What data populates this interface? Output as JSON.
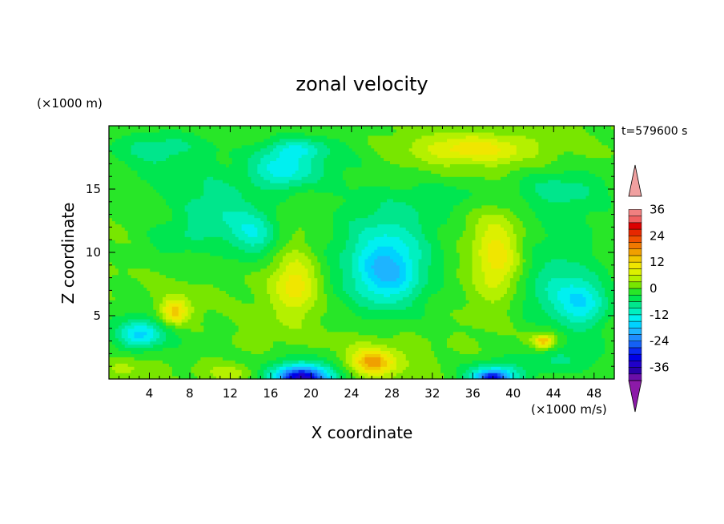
{
  "chart_data": {
    "type": "heatmap",
    "title": "zonal velocity",
    "xlabel": "X coordinate",
    "ylabel": "Z coordinate",
    "x_unit": "(×1000 m/s)",
    "y_unit": "(×1000 m)",
    "time_label": "t=579600 s",
    "xlim": [
      0,
      50
    ],
    "ylim": [
      0,
      20
    ],
    "x_ticks": [
      4,
      8,
      12,
      16,
      20,
      24,
      28,
      32,
      36,
      40,
      44,
      48
    ],
    "y_ticks": [
      5,
      10,
      15
    ],
    "colorbar": {
      "levels": [
        -42,
        -39,
        -36,
        -33,
        -30,
        -27,
        -24,
        -21,
        -18,
        -15,
        -12,
        -9,
        -6,
        -3,
        0,
        3,
        6,
        9,
        12,
        15,
        18,
        21,
        24,
        27,
        30,
        33,
        36,
        39,
        42
      ],
      "colors": [
        "#6a0ea8",
        "#2a00a8",
        "#2000c8",
        "#0000e6",
        "#0a28f0",
        "#1460f5",
        "#1e8cff",
        "#1eb4ff",
        "#00d2ff",
        "#00f0f0",
        "#00f0c0",
        "#00e68c",
        "#00e650",
        "#28e628",
        "#78e600",
        "#b4f000",
        "#dcf000",
        "#f0e600",
        "#f0c800",
        "#f0a000",
        "#f07800",
        "#f05000",
        "#e62800",
        "#dc0000",
        "#f06060",
        "#f08080"
      ],
      "tick_labels": [
        "36",
        "24",
        "12",
        "0",
        "-12",
        "-24",
        "-36"
      ],
      "tick_values": [
        36,
        24,
        12,
        0,
        -12,
        -24,
        -36
      ],
      "under_color": "#8c1aa8",
      "over_color": "#f0a0a0"
    },
    "field": {
      "background": 0,
      "features": [
        {
          "x": 45,
          "y": 12.5,
          "rx": 5,
          "ry": 3.5,
          "value": -4
        },
        {
          "x": 44,
          "y": 7,
          "rx": 4,
          "ry": 3,
          "value": -8
        },
        {
          "x": 47,
          "y": 6,
          "rx": 2.5,
          "ry": 2,
          "value": -11
        },
        {
          "x": 44.5,
          "y": 1.8,
          "rx": 5,
          "ry": 1.5,
          "value": -6
        },
        {
          "x": 10.5,
          "y": 13.2,
          "rx": 4,
          "ry": 2.8,
          "value": -8
        },
        {
          "x": 14.5,
          "y": 11.5,
          "rx": 2.5,
          "ry": 2,
          "value": -10
        },
        {
          "x": 6,
          "y": 11,
          "rx": 3,
          "ry": 1.5,
          "value": -4
        },
        {
          "x": 5,
          "y": 16.5,
          "rx": 6,
          "ry": 2,
          "value": -4
        },
        {
          "x": 5,
          "y": 18.5,
          "rx": 5,
          "ry": 1.2,
          "value": -6
        },
        {
          "x": 20,
          "y": 17.2,
          "rx": 6,
          "ry": 2.5,
          "value": -5
        },
        {
          "x": 17,
          "y": 16.5,
          "rx": 3,
          "ry": 1.5,
          "value": -10
        },
        {
          "x": 28,
          "y": 12.5,
          "rx": 5,
          "ry": 2.5,
          "value": -4
        },
        {
          "x": 27,
          "y": 9,
          "rx": 6,
          "ry": 4,
          "value": -8
        },
        {
          "x": 27.5,
          "y": 8.5,
          "rx": 3,
          "ry": 2.5,
          "value": -12
        },
        {
          "x": 35,
          "y": 14.5,
          "rx": 6,
          "ry": 1.5,
          "value": -4
        },
        {
          "x": 45,
          "y": 15.2,
          "rx": 5,
          "ry": 1.5,
          "value": -5
        },
        {
          "x": 4,
          "y": 4,
          "rx": 4,
          "ry": 2,
          "value": -6
        },
        {
          "x": 3,
          "y": 3.5,
          "rx": 2,
          "ry": 1,
          "value": -11
        },
        {
          "x": 18.5,
          "y": 18.2,
          "rx": 3,
          "ry": 0.8,
          "value": -7
        },
        {
          "x": 36,
          "y": 18.2,
          "rx": 8,
          "ry": 1.8,
          "value": 4
        },
        {
          "x": 36,
          "y": 18.2,
          "rx": 5,
          "ry": 0.9,
          "value": 7
        },
        {
          "x": 38,
          "y": 10.5,
          "rx": 3.5,
          "ry": 5,
          "value": 4
        },
        {
          "x": 38.5,
          "y": 9.5,
          "rx": 2,
          "ry": 3,
          "value": 8
        },
        {
          "x": 18.3,
          "y": 7.5,
          "rx": 3,
          "ry": 4.5,
          "value": 4
        },
        {
          "x": 18.5,
          "y": 7.5,
          "rx": 2,
          "ry": 2,
          "value": 8
        },
        {
          "x": 6.5,
          "y": 5.5,
          "rx": 2.5,
          "ry": 1.5,
          "value": 6
        },
        {
          "x": 6.5,
          "y": 5.3,
          "rx": 1.2,
          "ry": 0.9,
          "value": 10
        },
        {
          "x": 43,
          "y": 3,
          "rx": 2,
          "ry": 1,
          "value": 6
        },
        {
          "x": 43,
          "y": 3,
          "rx": 1,
          "ry": 0.5,
          "value": 12
        },
        {
          "x": 26,
          "y": 1.5,
          "rx": 4,
          "ry": 1.8,
          "value": 6
        },
        {
          "x": 26,
          "y": 1.3,
          "rx": 2,
          "ry": 0.9,
          "value": 12
        },
        {
          "x": 12,
          "y": 0.5,
          "rx": 2.5,
          "ry": 0.7,
          "value": 5
        },
        {
          "x": 2,
          "y": 1,
          "rx": 2.5,
          "ry": 0.9,
          "value": 4
        },
        {
          "x": 19.5,
          "y": 0.3,
          "rx": 4,
          "ry": 1.5,
          "value": -14
        },
        {
          "x": 19,
          "y": 0.1,
          "rx": 2.5,
          "ry": 0.8,
          "value": -22
        },
        {
          "x": 38,
          "y": 0.3,
          "rx": 3,
          "ry": 1,
          "value": -14
        },
        {
          "x": 38,
          "y": 0.1,
          "rx": 1.5,
          "ry": 0.5,
          "value": -19
        }
      ]
    }
  }
}
